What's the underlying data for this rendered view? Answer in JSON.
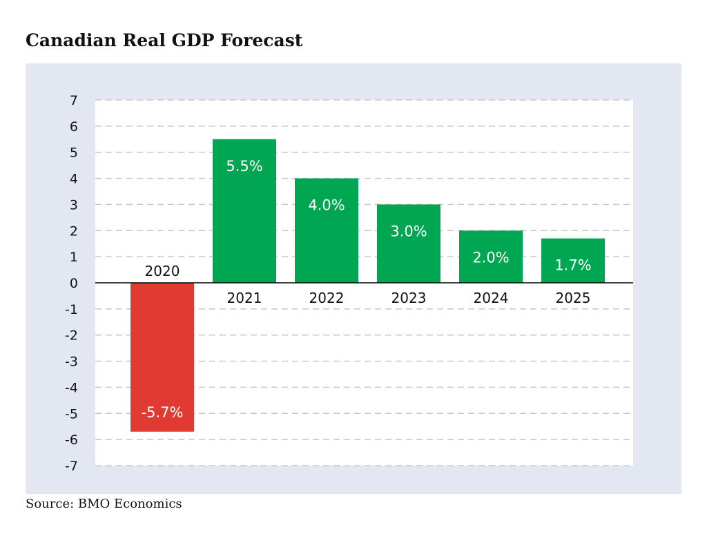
{
  "title": "Canadian Real GDP Forecast",
  "source": "Source: BMO Economics",
  "colors": {
    "panel_bg": "#e3e7f2",
    "plot_bg": "#ffffff",
    "positive": "#00a651",
    "negative": "#e03a32",
    "grid": "#c8c8c8",
    "axis": "#000000"
  },
  "chart_data": {
    "type": "bar",
    "title": "Canadian Real GDP Forecast",
    "categories": [
      "2020",
      "2021",
      "2022",
      "2023",
      "2024",
      "2025"
    ],
    "values": [
      -5.7,
      5.5,
      4.0,
      3.0,
      2.0,
      1.7
    ],
    "data_labels": [
      "-5.7%",
      "5.5%",
      "4.0%",
      "3.0%",
      "2.0%",
      "1.7%"
    ],
    "xlabel": "",
    "ylabel": "",
    "ylim": [
      -7,
      7
    ],
    "yticks": [
      7,
      6,
      5,
      4,
      3,
      2,
      1,
      0,
      -1,
      -2,
      -3,
      -4,
      -5,
      -6,
      -7
    ],
    "grid": true,
    "legend": false
  }
}
